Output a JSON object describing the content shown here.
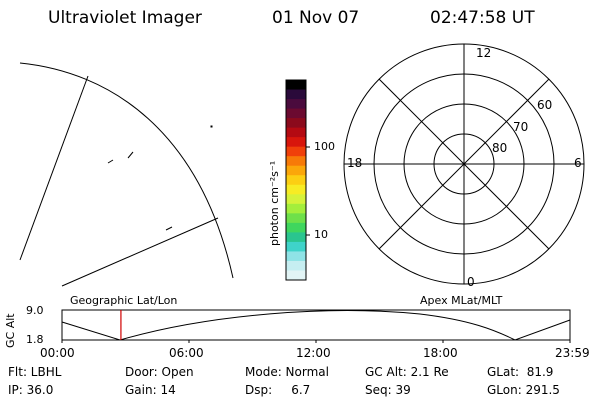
{
  "header": {
    "instrument": "Ultraviolet Imager",
    "date": "01 Nov 07",
    "time": "02:47:58 UT"
  },
  "colorbar": {
    "unit_label": "photon cm⁻²s⁻¹",
    "ticks": [
      "100",
      "10"
    ],
    "colors": [
      "#000000",
      "#2a0a3a",
      "#4a0b3d",
      "#6b0a30",
      "#8b0a1c",
      "#b40a12",
      "#d8160c",
      "#f0400a",
      "#f77a08",
      "#fba70a",
      "#fccf13",
      "#f7ec24",
      "#d6f23a",
      "#a4ee3c",
      "#6ee04a",
      "#3fd65e",
      "#2ac58f",
      "#3fd3c9",
      "#8fe3e6",
      "#c6eef1",
      "#e2f4f5"
    ]
  },
  "polar_plot": {
    "mlt_labels": {
      "top": "12",
      "left": "18",
      "right": "6",
      "bottom": "0"
    },
    "lat_labels": [
      "60",
      "70",
      "80"
    ]
  },
  "timeline": {
    "left_label": "Geographic Lat/Lon",
    "right_label": "Apex MLat/MLT",
    "axis_title": "GC Alt",
    "y_ticks": [
      "9.0",
      "1.8"
    ],
    "x_ticks": [
      "00:00",
      "06:00",
      "12:00",
      "18:00",
      "23:59"
    ],
    "current_time_fraction": 0.116
  },
  "status": {
    "flt": "Flt: LBHL",
    "ip": "IP: 36.0",
    "door": "Door: Open",
    "gain": "Gain: 14",
    "mode": "Mode: Normal",
    "dsp": "Dsp:     6.7",
    "gc_alt": "GC Alt: 2.1 Re",
    "seq": "Seq: 39",
    "glat": "GLat:  81.9",
    "glon": "GLon: 291.5"
  }
}
